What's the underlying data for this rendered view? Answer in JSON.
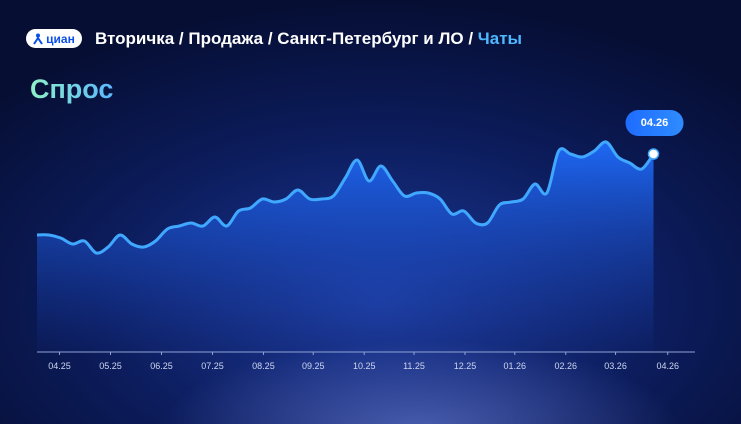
{
  "chart_data": {
    "type": "area",
    "brand": "циан",
    "breadcrumb": "Вторичка / Продажа / Санкт-Петербург и ЛО /",
    "breadcrumb_active": "Чаты",
    "title": "Спрос",
    "tooltip": "04.26",
    "x": [
      0,
      1,
      2,
      3,
      4,
      5,
      6,
      7,
      8,
      9,
      10,
      11,
      12,
      13,
      14,
      15,
      16,
      17,
      18,
      19,
      20,
      21,
      22,
      23,
      24,
      25,
      26,
      27,
      28,
      29,
      30,
      31,
      32,
      33,
      34,
      35,
      36,
      37,
      38,
      39,
      40,
      41,
      42,
      43,
      44,
      45,
      46,
      47,
      48,
      49,
      50,
      51,
      52
    ],
    "series": [
      {
        "color": "#41a8ff",
        "values": [
          39,
          39,
          38,
          36,
          37,
          33,
          35,
          39,
          36,
          35,
          37,
          41,
          42,
          43,
          42,
          45,
          42,
          47,
          48,
          51,
          50,
          51,
          54,
          51,
          51,
          52,
          58,
          64,
          57,
          62,
          57,
          52,
          53,
          53,
          51,
          46,
          47,
          43,
          43,
          49,
          50,
          51,
          56,
          53,
          67,
          66,
          65,
          67,
          70,
          65,
          63,
          61,
          66
        ]
      }
    ],
    "xlim": [
      0,
      55.5
    ],
    "ylim": [
      0,
      100
    ],
    "xticks": [
      {
        "value": 1.9,
        "label": "04.25"
      },
      {
        "value": 6.2,
        "label": "05.25"
      },
      {
        "value": 10.5,
        "label": "06.25"
      },
      {
        "value": 14.8,
        "label": "07.25"
      },
      {
        "value": 19.1,
        "label": "08.25"
      },
      {
        "value": 23.3,
        "label": "09.25"
      },
      {
        "value": 27.6,
        "label": "10.25"
      },
      {
        "value": 31.8,
        "label": "11.25"
      },
      {
        "value": 36.1,
        "label": "12.25"
      },
      {
        "value": 40.3,
        "label": "01.26"
      },
      {
        "value": 44.6,
        "label": "02.26"
      },
      {
        "value": 48.8,
        "label": "03.26"
      },
      {
        "value": 53.2,
        "label": "04.26"
      }
    ]
  }
}
